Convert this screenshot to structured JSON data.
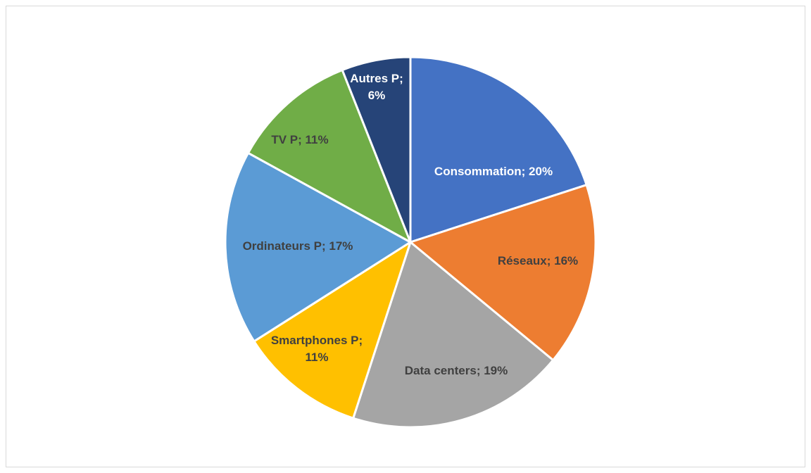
{
  "chart_data": {
    "type": "pie",
    "title": "",
    "legend": "none",
    "slices": [
      {
        "label": "Consommation",
        "value": 20,
        "display": "Consommation; 20%",
        "color": "#4472C4",
        "label_color": "#FFFFFF"
      },
      {
        "label": "Réseaux",
        "value": 16,
        "display": "Réseaux; 16%",
        "color": "#ED7D31",
        "label_color": "#404040"
      },
      {
        "label": "Data centers",
        "value": 19,
        "display": "Data centers; 19%",
        "color": "#A5A5A5",
        "label_color": "#404040"
      },
      {
        "label": "Smartphones P",
        "value": 11,
        "display_lines": [
          "Smartphones P;",
          "11%"
        ],
        "color": "#FFC000",
        "label_color": "#404040"
      },
      {
        "label": "Ordinateurs P",
        "value": 17,
        "display": "Ordinateurs P; 17%",
        "color": "#5B9BD5",
        "label_color": "#404040"
      },
      {
        "label": "TV P",
        "value": 11,
        "display": "TV P; 11%",
        "color": "#70AD47",
        "label_color": "#404040"
      },
      {
        "label": "Autres P",
        "value": 6,
        "display_lines": [
          "Autres P;",
          "6%"
        ],
        "color": "#264478",
        "label_color": "#FFFFFF"
      }
    ]
  }
}
